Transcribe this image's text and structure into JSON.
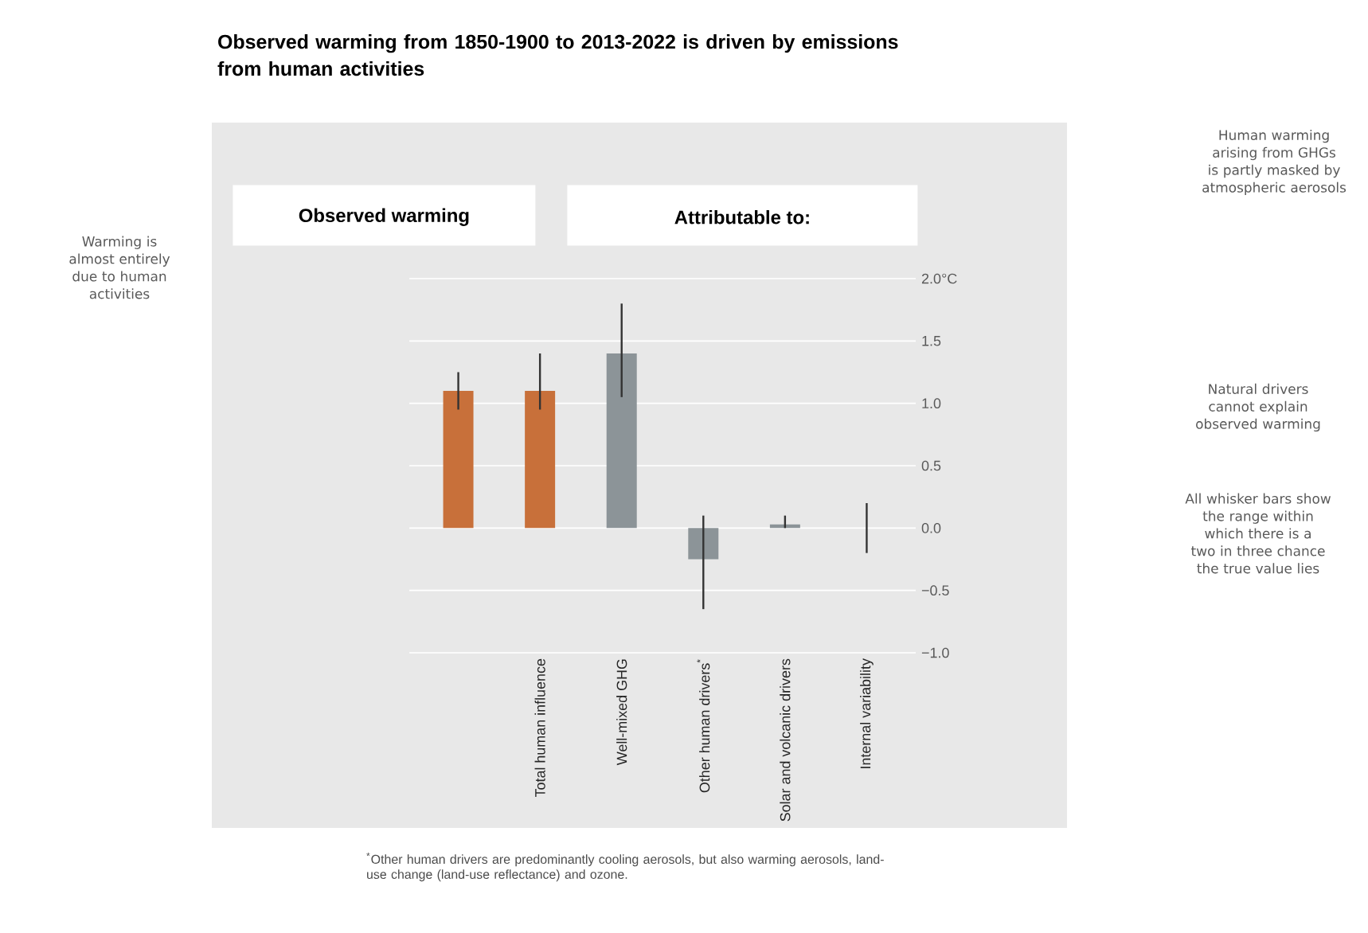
{
  "chart_data": {
    "type": "bar",
    "title": "Observed warming from 1850-1900 to 2013-2022 is driven by emissions from human activities",
    "ylabel": "°C",
    "categories": [
      null,
      "Total human influence",
      "Well-mixed GHG",
      "Other human drivers$^{*}$",
      "Solar and volcanic drivers",
      "Internal variability"
    ],
    "values": [
      1.1,
      1.1,
      1.4,
      -0.25,
      0.03,
      0
    ],
    "colors": [
      "#c8703a",
      "#c8703a",
      "#8c9498",
      "#8c9498",
      "#8c9498",
      "#8c9498"
    ],
    "errors": [
      [
        0.95,
        1.25
      ],
      [
        0.95,
        1.4
      ],
      [
        1.05,
        1.8
      ],
      [
        -0.65,
        0.1
      ],
      [
        0,
        0.1
      ],
      [
        -0.2,
        0.2
      ]
    ],
    "ylim": [
      -1.0,
      2.0
    ],
    "yticks": [
      {
        "value": -1.0,
        "label": "−1.0"
      },
      {
        "value": -0.5,
        "label": "−0.5"
      },
      {
        "value": 0,
        "label": "0.0"
      },
      {
        "value": 0.5,
        "label": "0.5"
      },
      {
        "value": 1.0,
        "label": "1.0"
      },
      {
        "value": 1.5,
        "label": "1.5"
      },
      {
        "value": 2.0,
        "label": "2.0"
      }
    ],
    "grid": "y",
    "annotations": [
      "Observed warming",
      "Attributable to:",
      "Warming is almost entirely due to human activities",
      "Human warming arising from GHGs is partly masked by atmospheric aerosols",
      "Natural drivers cannot explain observed warming",
      "All whisker bars show the range within which there is a two in three chance the true value lies",
      "$^{*}$Other human drivers are predominantly cooling aerosols, but also warming aerosols, land-use change (land-use reflectance) and ozone."
    ]
  }
}
